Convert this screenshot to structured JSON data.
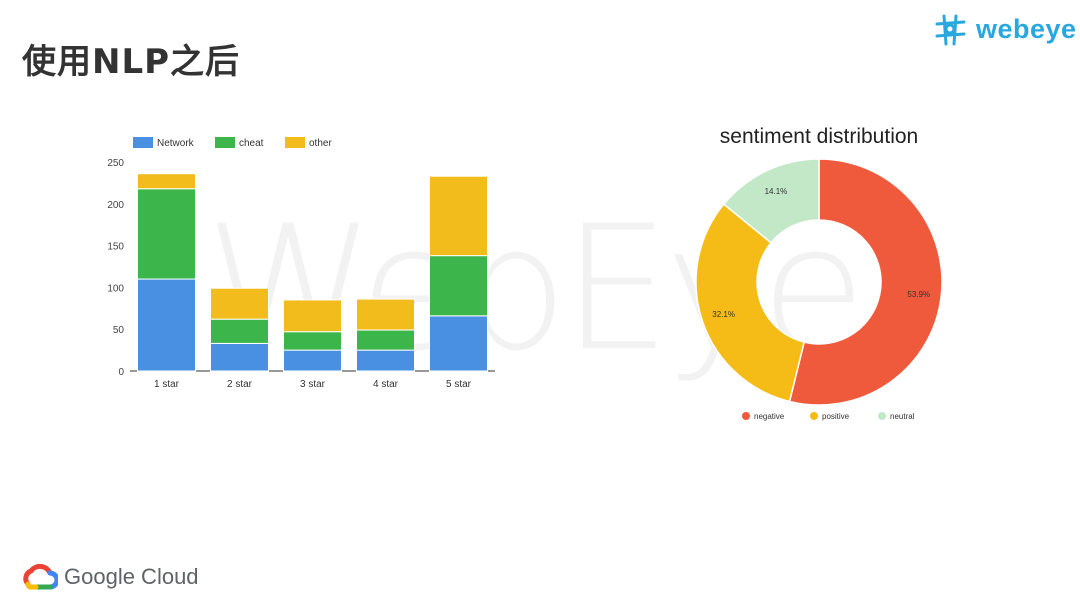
{
  "slide": {
    "title": "使用NLP之后",
    "watermark": "WebEye",
    "brand": "webeye",
    "footer_brand": "Google Cloud"
  },
  "chart_data": [
    {
      "type": "bar",
      "stacked": true,
      "categories": [
        "1 star",
        "2 star",
        "3 star",
        "4 star",
        "5 star"
      ],
      "series": [
        {
          "name": "Network",
          "color": "#4a90e2",
          "values": [
            110,
            33,
            25,
            25,
            66
          ]
        },
        {
          "name": "cheat",
          "color": "#3cb54a",
          "values": [
            108,
            29,
            22,
            24,
            72
          ]
        },
        {
          "name": "other",
          "color": "#f2bd1c",
          "values": [
            18,
            37,
            38,
            37,
            95
          ]
        }
      ],
      "ylim": [
        0,
        250
      ],
      "yticks": [
        0,
        50,
        100,
        150,
        200,
        250
      ],
      "grid": false,
      "legend": "top-left"
    },
    {
      "type": "pie",
      "donut": true,
      "title": "sentiment distribution",
      "slices": [
        {
          "label": "negative",
          "value": 53.9,
          "display": "53.9%",
          "color": "#f05a3c"
        },
        {
          "label": "positive",
          "value": 32.1,
          "display": "32.1%",
          "color": "#f5bb16"
        },
        {
          "label": "neutral",
          "value": 14.1,
          "display": "14.1%",
          "color": "#c3e8c7"
        }
      ],
      "legend": "bottom"
    }
  ]
}
